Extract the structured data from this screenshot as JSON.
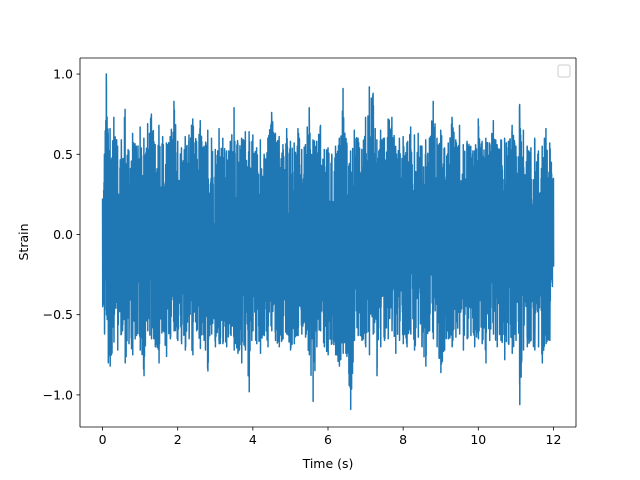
{
  "chart_data": {
    "type": "line",
    "title": "",
    "xlabel": "Time (s)",
    "ylabel": "Strain",
    "xlim": [
      -0.6,
      12.6
    ],
    "ylim": [
      -1.2,
      1.1
    ],
    "x_ticks": [
      0,
      2,
      4,
      6,
      8,
      10,
      12
    ],
    "x_tick_labels": [
      "0",
      "2",
      "4",
      "6",
      "8",
      "10",
      "12"
    ],
    "y_ticks": [
      -1.0,
      -0.5,
      0.0,
      0.5,
      1.0
    ],
    "y_tick_labels": [
      "−1.0",
      "−0.5",
      "0.0",
      "0.5",
      "1.0"
    ],
    "grid": false,
    "legend": {
      "placement": "top-right",
      "entries": []
    },
    "series": [
      {
        "color": "#1f77b4",
        "x_range": [
          0,
          12
        ],
        "envelope": {
          "t": [
            0.0,
            0.05,
            0.1,
            0.15,
            0.2,
            0.3,
            0.4,
            0.5,
            0.6,
            0.7,
            0.8,
            0.9,
            1.0,
            1.1,
            1.2,
            1.3,
            1.4,
            1.5,
            1.6,
            1.7,
            1.8,
            1.9,
            2.0,
            2.1,
            2.2,
            2.3,
            2.4,
            2.5,
            2.6,
            2.7,
            2.8,
            2.9,
            3.0,
            3.1,
            3.2,
            3.3,
            3.4,
            3.5,
            3.6,
            3.7,
            3.8,
            3.9,
            4.0,
            4.1,
            4.2,
            4.3,
            4.4,
            4.5,
            4.6,
            4.7,
            4.8,
            4.9,
            5.0,
            5.1,
            5.2,
            5.3,
            5.4,
            5.5,
            5.6,
            5.7,
            5.8,
            5.9,
            6.0,
            6.1,
            6.2,
            6.3,
            6.4,
            6.5,
            6.6,
            6.7,
            6.8,
            6.9,
            7.0,
            7.1,
            7.2,
            7.3,
            7.4,
            7.5,
            7.6,
            7.7,
            7.8,
            7.9,
            8.0,
            8.1,
            8.2,
            8.3,
            8.4,
            8.5,
            8.6,
            8.7,
            8.8,
            8.9,
            9.0,
            9.1,
            9.2,
            9.3,
            9.4,
            9.5,
            9.6,
            9.7,
            9.8,
            9.9,
            10.0,
            10.1,
            10.2,
            10.3,
            10.4,
            10.5,
            10.6,
            10.7,
            10.8,
            10.9,
            11.0,
            11.1,
            11.2,
            11.3,
            11.4,
            11.5,
            11.6,
            11.7,
            11.8,
            11.9,
            12.0
          ],
          "max": [
            0.22,
            0.5,
            1.0,
            0.63,
            0.66,
            0.73,
            0.55,
            0.59,
            0.78,
            0.52,
            0.63,
            0.55,
            0.67,
            0.6,
            0.69,
            0.75,
            0.56,
            0.68,
            0.61,
            0.57,
            0.61,
            0.83,
            0.58,
            0.54,
            0.61,
            0.62,
            0.72,
            0.58,
            0.71,
            0.55,
            0.65,
            0.6,
            0.53,
            0.66,
            0.6,
            0.52,
            0.58,
            0.79,
            0.57,
            0.6,
            0.64,
            0.64,
            0.62,
            0.54,
            0.59,
            0.5,
            0.6,
            0.76,
            0.63,
            0.61,
            0.56,
            0.66,
            0.58,
            0.57,
            0.66,
            0.53,
            0.56,
            0.79,
            0.59,
            0.58,
            0.68,
            0.53,
            0.54,
            0.5,
            0.55,
            0.6,
            0.91,
            0.57,
            0.52,
            0.65,
            0.6,
            0.53,
            0.73,
            0.92,
            0.88,
            0.59,
            0.65,
            0.6,
            0.72,
            0.73,
            0.55,
            0.6,
            0.61,
            0.57,
            0.67,
            0.62,
            0.63,
            0.55,
            0.59,
            0.6,
            0.83,
            0.6,
            0.65,
            0.54,
            0.57,
            0.73,
            0.59,
            0.68,
            0.56,
            0.58,
            0.55,
            0.52,
            0.72,
            0.58,
            0.6,
            0.57,
            0.71,
            0.56,
            0.59,
            0.6,
            0.58,
            0.68,
            0.55,
            0.81,
            0.65,
            0.55,
            0.54,
            0.6,
            0.52,
            0.55,
            0.66,
            0.57,
            0.35
          ],
          "min": [
            -0.45,
            -0.62,
            -0.5,
            -0.8,
            -0.82,
            -0.67,
            -0.72,
            -0.62,
            -0.8,
            -0.68,
            -0.75,
            -0.63,
            -0.72,
            -0.88,
            -0.6,
            -0.65,
            -0.7,
            -0.8,
            -0.6,
            -0.76,
            -0.65,
            -0.6,
            -0.66,
            -0.68,
            -0.72,
            -0.65,
            -0.75,
            -0.6,
            -0.71,
            -0.66,
            -0.85,
            -0.62,
            -0.7,
            -0.68,
            -0.68,
            -0.7,
            -0.62,
            -0.72,
            -0.74,
            -0.8,
            -0.72,
            -0.98,
            -0.6,
            -0.68,
            -0.74,
            -0.63,
            -0.7,
            -0.6,
            -0.66,
            -0.7,
            -0.65,
            -0.62,
            -0.72,
            -0.68,
            -0.63,
            -0.62,
            -0.64,
            -0.75,
            -1.04,
            -0.7,
            -0.6,
            -0.7,
            -0.75,
            -0.68,
            -0.75,
            -0.82,
            -0.74,
            -0.76,
            -1.09,
            -0.66,
            -0.63,
            -0.66,
            -0.7,
            -0.75,
            -0.62,
            -0.88,
            -0.7,
            -0.66,
            -0.65,
            -0.6,
            -0.74,
            -0.66,
            -0.68,
            -0.7,
            -0.62,
            -0.72,
            -0.64,
            -0.7,
            -0.82,
            -0.6,
            -0.65,
            -0.7,
            -0.86,
            -0.72,
            -0.65,
            -0.7,
            -0.64,
            -0.62,
            -0.72,
            -0.65,
            -0.63,
            -0.7,
            -0.65,
            -0.68,
            -0.8,
            -0.66,
            -0.62,
            -0.7,
            -0.66,
            -0.78,
            -0.68,
            -0.74,
            -0.66,
            -1.06,
            -0.72,
            -0.7,
            -0.66,
            -0.72,
            -0.7,
            -0.8,
            -0.68,
            -0.66,
            -0.2
          ]
        }
      }
    ]
  }
}
